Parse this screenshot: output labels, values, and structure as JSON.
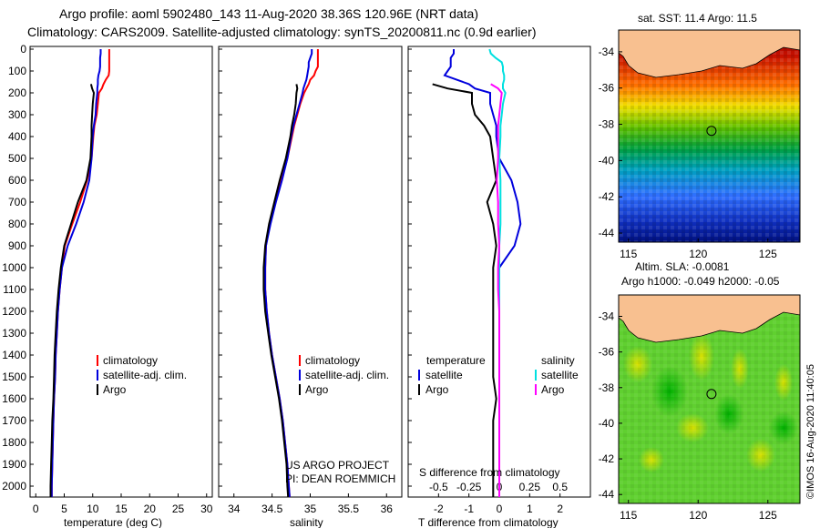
{
  "header": {
    "line1": "Argo profile: aoml 5902480_143 11-Aug-2020 38.36S 120.96E (NRT data)",
    "line2": "Climatology: CARS2009. Satellite-adjusted climatology: synTS_20200811.nc (0.9d earlier)"
  },
  "colors": {
    "argo": "#000000",
    "climatology": "#ff0000",
    "satellite": "#0000dd",
    "sal_satellite": "#00e0e0",
    "sal_argo": "#ff00ff"
  },
  "depth_ticks": [
    "0",
    "100",
    "200",
    "300",
    "400",
    "500",
    "600",
    "700",
    "800",
    "900",
    "1000",
    "1100",
    "1200",
    "1300",
    "1400",
    "1500",
    "1600",
    "1700",
    "1800",
    "1900",
    "2000"
  ],
  "chart_data": [
    {
      "type": "line",
      "name": "temperature",
      "xlabel": "temperature (deg C)",
      "ylabel": "depth",
      "xlim": [
        -1,
        31
      ],
      "ylim": [
        2050,
        0
      ],
      "xticks": [
        "0",
        "5",
        "10",
        "15",
        "20",
        "25",
        "30"
      ],
      "xtick_values": [
        0,
        5,
        10,
        15,
        20,
        25,
        30
      ],
      "legend": [
        "climatology",
        "satellite-adj. clim.",
        "Argo"
      ],
      "depth": [
        0,
        20,
        40,
        60,
        80,
        100,
        120,
        140,
        160,
        180,
        200,
        250,
        300,
        350,
        400,
        500,
        600,
        700,
        800,
        900,
        1000,
        1100,
        1200,
        1300,
        1400,
        1500,
        1600,
        1700,
        1800,
        1900,
        2000,
        2050
      ],
      "series": [
        {
          "name": "climatology",
          "values": [
            12.9,
            12.9,
            12.9,
            12.9,
            12.9,
            12.9,
            12.8,
            12.3,
            11.9,
            11.6,
            11.1,
            10.9,
            10.7,
            10.3,
            10.1,
            9.8,
            9.0,
            7.8,
            6.4,
            5.1,
            4.6,
            4.2,
            3.9,
            3.7,
            3.5,
            3.4,
            3.2,
            3.1,
            3.0,
            2.9,
            2.8,
            2.8
          ]
        },
        {
          "name": "satellite-adj. clim.",
          "values": [
            11.4,
            11.4,
            11.3,
            11.3,
            11.3,
            11.2,
            11.0,
            10.9,
            10.9,
            10.8,
            10.8,
            10.6,
            10.5,
            10.2,
            10.0,
            9.8,
            9.4,
            8.4,
            7.1,
            5.6,
            4.6,
            4.2,
            3.9,
            3.7,
            3.5,
            3.4,
            3.2,
            3.1,
            3.0,
            2.9,
            2.8,
            2.8
          ]
        },
        {
          "name": "Argo",
          "values": [
            null,
            null,
            null,
            null,
            null,
            null,
            null,
            null,
            9.7,
            9.9,
            10.2,
            10.0,
            9.9,
            9.8,
            9.8,
            9.6,
            8.9,
            7.4,
            6.2,
            5.0,
            4.4,
            4.0,
            3.7,
            3.5,
            3.3,
            3.2,
            3.1,
            2.9,
            2.8,
            2.7,
            2.6,
            2.6
          ]
        }
      ]
    },
    {
      "type": "line",
      "name": "salinity",
      "xlabel": "salinity",
      "ylabel": "depth",
      "xlim": [
        33.8,
        36.2
      ],
      "ylim": [
        2050,
        0
      ],
      "xticks": [
        "34",
        "34.5",
        "35",
        "35.5",
        "36"
      ],
      "xtick_values": [
        34,
        34.5,
        35,
        35.5,
        36
      ],
      "legend": [
        "climatology",
        "satellite-adj. clim.",
        "Argo"
      ],
      "annotation": [
        "US ARGO PROJECT",
        "PI: DEAN ROEMMICH"
      ],
      "depth": [
        0,
        20,
        40,
        60,
        80,
        100,
        120,
        140,
        160,
        180,
        200,
        250,
        300,
        350,
        400,
        500,
        600,
        700,
        800,
        900,
        1000,
        1100,
        1200,
        1300,
        1400,
        1500,
        1600,
        1700,
        1800,
        1900,
        2000,
        2050
      ],
      "series": [
        {
          "name": "climatology",
          "values": [
            35.1,
            35.1,
            35.1,
            35.1,
            35.1,
            35.07,
            35.05,
            35.0,
            34.98,
            34.95,
            34.92,
            34.87,
            34.83,
            34.79,
            34.76,
            34.7,
            34.62,
            34.54,
            34.47,
            34.42,
            34.41,
            34.41,
            34.43,
            34.46,
            34.5,
            34.55,
            34.6,
            34.64,
            34.67,
            34.7,
            34.72,
            34.73
          ]
        },
        {
          "name": "satellite-adj. clim.",
          "values": [
            35.02,
            35.02,
            35.0,
            34.98,
            34.98,
            34.97,
            34.96,
            34.95,
            34.93,
            34.91,
            34.9,
            34.86,
            34.82,
            34.78,
            34.75,
            34.7,
            34.63,
            34.55,
            34.48,
            34.42,
            34.41,
            34.41,
            34.43,
            34.46,
            34.5,
            34.55,
            34.6,
            34.64,
            34.67,
            34.7,
            34.72,
            34.73
          ]
        },
        {
          "name": "Argo",
          "values": [
            null,
            null,
            null,
            null,
            null,
            null,
            null,
            null,
            34.82,
            34.83,
            34.82,
            34.81,
            34.79,
            34.76,
            34.74,
            34.68,
            34.6,
            34.53,
            34.46,
            34.41,
            34.39,
            34.39,
            34.41,
            34.45,
            34.49,
            34.54,
            34.59,
            34.63,
            34.66,
            34.69,
            34.7,
            34.71
          ]
        }
      ]
    },
    {
      "type": "line",
      "name": "difference from climatology",
      "xlabel": "T difference from climatology",
      "ylabel": "depth",
      "xlim": [
        -3,
        3
      ],
      "ylim": [
        2050,
        0
      ],
      "xticks": [
        "-2",
        "-1",
        "0",
        "1",
        "2"
      ],
      "xtick_values": [
        -2,
        -1,
        0,
        1,
        2
      ],
      "s_axis_label": "S difference from climatology",
      "s_xticks": [
        "-0.5",
        "-0.25",
        "0",
        "0.25",
        "0.5"
      ],
      "s_xtick_values": [
        -0.5,
        -0.25,
        0,
        0.25,
        0.5
      ],
      "s_per_t": 0.25,
      "legend_left_title": "temperature",
      "legend_right_title": "salinity",
      "legend": [
        "satellite",
        "Argo",
        "satellite",
        "Argo"
      ],
      "depth": [
        0,
        20,
        40,
        60,
        80,
        100,
        120,
        140,
        160,
        180,
        200,
        250,
        300,
        350,
        400,
        500,
        600,
        700,
        800,
        900,
        1000,
        1100,
        1200,
        1300,
        1400,
        1500,
        1600,
        1700,
        1800,
        1900,
        2000,
        2050
      ],
      "series": [
        {
          "name": "T satellite",
          "unit": "degC",
          "values": [
            -1.5,
            -1.5,
            -1.6,
            -1.6,
            -1.6,
            -1.7,
            -1.8,
            -1.4,
            -1.0,
            -0.8,
            -0.3,
            -0.3,
            -0.2,
            -0.1,
            -0.1,
            0.0,
            0.4,
            0.6,
            0.7,
            0.5,
            0.0,
            0.0,
            0.0,
            0.0,
            0.0,
            0.0,
            0.0,
            0.0,
            0.0,
            0.0,
            0.0,
            0.0
          ]
        },
        {
          "name": "T Argo",
          "unit": "degC",
          "values": [
            null,
            null,
            null,
            null,
            null,
            null,
            null,
            null,
            -2.2,
            -1.7,
            -0.9,
            -0.9,
            -0.8,
            -0.5,
            -0.3,
            -0.2,
            -0.1,
            -0.4,
            -0.2,
            -0.1,
            -0.2,
            -0.2,
            -0.2,
            -0.2,
            -0.2,
            -0.2,
            -0.1,
            -0.2,
            -0.2,
            -0.2,
            -0.2,
            -0.2
          ]
        },
        {
          "name": "S satellite",
          "unit": "psu",
          "values": [
            -0.08,
            -0.07,
            -0.03,
            0.02,
            0.03,
            0.03,
            0.04,
            0.04,
            0.03,
            0.03,
            0.05,
            0.03,
            0.02,
            0.01,
            0.01,
            0.0,
            0.01,
            0.01,
            0.01,
            0.0,
            0.0,
            0.0,
            0.0,
            0.0,
            0.0,
            0.0,
            0.0,
            0.0,
            0.0,
            0.0,
            0.0,
            0.0
          ]
        },
        {
          "name": "S Argo",
          "unit": "psu",
          "values": [
            null,
            null,
            null,
            null,
            null,
            null,
            null,
            null,
            -0.07,
            -0.01,
            0.02,
            0.01,
            0.0,
            -0.01,
            -0.01,
            -0.01,
            -0.02,
            -0.01,
            -0.01,
            0.0,
            -0.01,
            -0.01,
            0.0,
            0.0,
            0.0,
            0.0,
            0.0,
            0.0,
            0.0,
            0.0,
            0.0,
            0.0
          ]
        }
      ]
    },
    {
      "type": "heatmap",
      "name": "satellite SST map",
      "title": "sat. SST: 11.4 Argo: 11.5",
      "xticks": [
        "115",
        "120",
        "125"
      ],
      "xtick_values": [
        115,
        120,
        125
      ],
      "yticks": [
        "-34",
        "-36",
        "-38",
        "-40",
        "-42",
        "-44"
      ],
      "ytick_values": [
        -34,
        -36,
        -38,
        -40,
        -42,
        -44
      ],
      "xlim": [
        114.3,
        127.3
      ],
      "ylim": [
        -44.5,
        -32.8
      ],
      "marker": {
        "lon": 120.96,
        "lat": -38.36
      }
    },
    {
      "type": "heatmap",
      "name": "altimetry SLA map",
      "title": "Altim. SLA: -0.0081",
      "subtitle": "Argo h1000: -0.049 h2000: -0.05",
      "xticks": [
        "115",
        "120",
        "125"
      ],
      "xtick_values": [
        115,
        120,
        125
      ],
      "yticks": [
        "-34",
        "-36",
        "-38",
        "-40",
        "-42",
        "-44"
      ],
      "ytick_values": [
        -34,
        -36,
        -38,
        -40,
        -42,
        -44
      ],
      "xlim": [
        114.3,
        127.3
      ],
      "ylim": [
        -44.5,
        -32.8
      ],
      "marker": {
        "lon": 120.96,
        "lat": -38.36
      }
    }
  ],
  "side_credit": "©IMOS 16-Aug-2020 11:40:05"
}
